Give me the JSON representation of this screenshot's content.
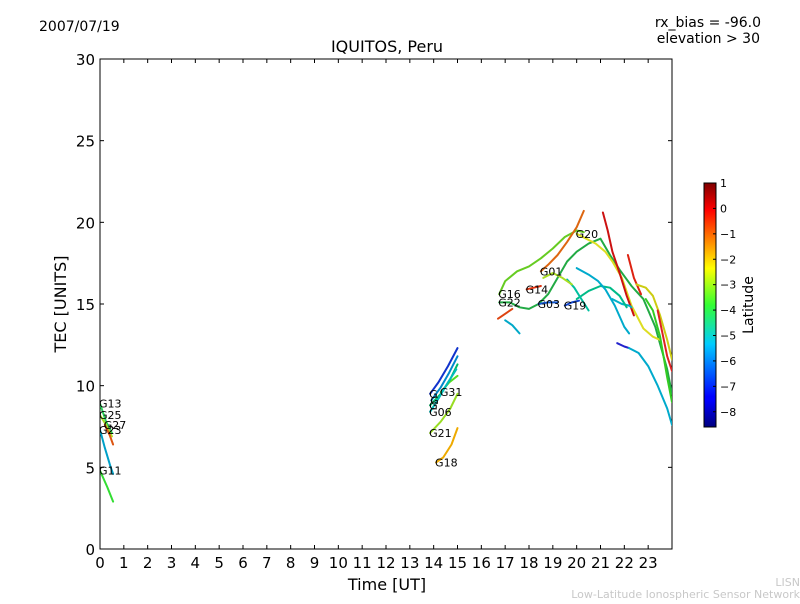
{
  "header": {
    "date": "2007/07/19",
    "rx_bias": "rx_bias = -96.0",
    "elevation": "elevation > 30"
  },
  "footer": {
    "org_short": "LISN",
    "org_full": "Low-Latitude Ionospheric Sensor Network"
  },
  "colorbar": {
    "label": "Latitude",
    "ticks": [
      1,
      0,
      -1,
      -2,
      -3,
      -4,
      -5,
      -6,
      -7,
      -8
    ],
    "range": [
      -8.6,
      1
    ],
    "colormap": "jet"
  },
  "chart_data": {
    "type": "line",
    "title": "IQUITOS, Peru",
    "xlabel": "Time [UT]",
    "ylabel": "TEC [UNITS]",
    "xlim": [
      0,
      24
    ],
    "ylim": [
      0,
      30
    ],
    "xticks": [
      "0",
      "1",
      "2",
      "3",
      "4",
      "5",
      "6",
      "7",
      "8",
      "9",
      "10",
      "11",
      "12",
      "13",
      "14",
      "15",
      "16",
      "17",
      "18",
      "19",
      "20",
      "21",
      "22",
      "23"
    ],
    "yticks": [
      0,
      5,
      10,
      15,
      20,
      25,
      30
    ],
    "grid": false,
    "color_by": "latitude",
    "series": [
      {
        "name": "G13",
        "color": "#2ad45a",
        "points": [
          [
            0,
            8.9
          ],
          [
            0.25,
            7.8
          ],
          [
            0.5,
            7.1
          ]
        ]
      },
      {
        "name": "G25",
        "color": "#aadd22",
        "points": [
          [
            0,
            8.2
          ],
          [
            0.25,
            7.6
          ],
          [
            0.5,
            6.9
          ]
        ]
      },
      {
        "name": "G27",
        "color": "#dd5511",
        "points": [
          [
            0.2,
            7.6
          ],
          [
            0.4,
            7.0
          ],
          [
            0.55,
            6.4
          ]
        ]
      },
      {
        "name": "G23",
        "color": "#00a0c8",
        "points": [
          [
            0,
            7.3
          ],
          [
            0.2,
            6.2
          ],
          [
            0.45,
            5.0
          ],
          [
            0.55,
            4.6
          ]
        ]
      },
      {
        "name": "G11",
        "color": "#33dd33",
        "points": [
          [
            0,
            4.8
          ],
          [
            0.3,
            3.8
          ],
          [
            0.55,
            2.9
          ]
        ]
      },
      {
        "name": "G31",
        "color": "#55dd22",
        "points": [
          [
            14.3,
            9.6
          ],
          [
            14.65,
            10.2
          ],
          [
            15.0,
            10.6
          ]
        ]
      },
      {
        "name": "G",
        "color": "#1133cc",
        "points": [
          [
            13.85,
            9.5
          ],
          [
            14.2,
            10.2
          ],
          [
            14.6,
            11.2
          ],
          [
            15.0,
            12.3
          ]
        ]
      },
      {
        "name": "G",
        "color": "#0088cc",
        "points": [
          [
            13.9,
            9.1
          ],
          [
            14.3,
            9.9
          ],
          [
            14.65,
            10.8
          ],
          [
            15.0,
            11.8
          ]
        ]
      },
      {
        "name": "G",
        "color": "#00bb66",
        "points": [
          [
            13.85,
            8.8
          ],
          [
            14.3,
            9.5
          ],
          [
            14.7,
            10.4
          ],
          [
            15.0,
            11.3
          ]
        ]
      },
      {
        "name": "G06",
        "color": "#00bbbb",
        "points": [
          [
            13.85,
            8.4
          ],
          [
            14.2,
            9.2
          ],
          [
            14.6,
            10.2
          ],
          [
            14.95,
            11.0
          ]
        ]
      },
      {
        "name": "G21",
        "color": "#99dd22",
        "points": [
          [
            13.85,
            7.1
          ],
          [
            14.3,
            7.8
          ],
          [
            14.7,
            8.6
          ],
          [
            15.0,
            9.5
          ]
        ]
      },
      {
        "name": "G18",
        "color": "#eeaa00",
        "points": [
          [
            14.1,
            5.3
          ],
          [
            14.4,
            5.6
          ],
          [
            14.75,
            6.4
          ],
          [
            15.0,
            7.4
          ]
        ]
      },
      {
        "name": "G16",
        "color": "#66cc22",
        "points": [
          [
            16.75,
            15.6
          ],
          [
            17.0,
            16.4
          ],
          [
            17.5,
            17.0
          ],
          [
            18.0,
            17.3
          ],
          [
            18.5,
            17.8
          ],
          [
            19.0,
            18.4
          ],
          [
            19.5,
            19.1
          ],
          [
            20.0,
            19.5
          ],
          [
            20.3,
            19.4
          ]
        ]
      },
      {
        "name": "G22",
        "color": "#22aa44",
        "points": [
          [
            16.75,
            15.1
          ],
          [
            17.2,
            15.1
          ],
          [
            17.6,
            14.8
          ],
          [
            18.0,
            14.7
          ],
          [
            18.4,
            15.0
          ],
          [
            18.8,
            15.6
          ],
          [
            19.2,
            16.6
          ],
          [
            19.6,
            17.6
          ],
          [
            20.0,
            18.2
          ],
          [
            20.5,
            18.7
          ],
          [
            21.0,
            19.0
          ],
          [
            21.4,
            18.0
          ],
          [
            21.8,
            17.1
          ],
          [
            22.3,
            16.1
          ],
          [
            22.8,
            15.3
          ],
          [
            23.3,
            13.6
          ],
          [
            23.8,
            11.0
          ],
          [
            24.0,
            9.5
          ]
        ]
      },
      {
        "name": "G14",
        "color": "#dd3311",
        "points": [
          [
            17.9,
            15.9
          ],
          [
            18.2,
            16.0
          ],
          [
            18.5,
            16.1
          ]
        ]
      },
      {
        "name": "G01",
        "color": "#dd6611",
        "points": [
          [
            18.5,
            17.0
          ],
          [
            18.8,
            17.4
          ],
          [
            19.2,
            18.0
          ],
          [
            19.6,
            18.8
          ],
          [
            20.0,
            19.7
          ],
          [
            20.3,
            20.7
          ]
        ]
      },
      {
        "name": "G03",
        "color": "#1155cc",
        "points": [
          [
            18.4,
            15.0
          ],
          [
            18.8,
            15.1
          ],
          [
            19.2,
            15.1
          ]
        ]
      },
      {
        "name": "G19",
        "color": "#1144cc",
        "points": [
          [
            19.5,
            14.9
          ],
          [
            19.8,
            15.1
          ],
          [
            20.1,
            15.2
          ]
        ]
      },
      {
        "name": "G20",
        "color": "#dddd22",
        "points": [
          [
            20.0,
            19.3
          ],
          [
            20.4,
            19.0
          ],
          [
            20.8,
            18.7
          ],
          [
            21.2,
            18.2
          ],
          [
            21.5,
            17.6
          ],
          [
            21.9,
            16.6
          ],
          [
            22.3,
            14.9
          ],
          [
            22.8,
            13.5
          ],
          [
            23.2,
            13.0
          ],
          [
            23.5,
            12.8
          ]
        ]
      },
      {
        "name": "",
        "color": "#cc1111",
        "points": [
          [
            21.1,
            20.6
          ],
          [
            21.3,
            19.5
          ],
          [
            21.5,
            18.2
          ],
          [
            21.8,
            16.9
          ],
          [
            22.1,
            15.5
          ],
          [
            22.4,
            14.3
          ]
        ]
      },
      {
        "name": "",
        "color": "#dd2211",
        "points": [
          [
            22.15,
            18.0
          ],
          [
            22.4,
            16.6
          ],
          [
            22.7,
            15.6
          ]
        ]
      },
      {
        "name": "",
        "color": "#cccc11",
        "points": [
          [
            22.5,
            16.2
          ],
          [
            22.9,
            16.0
          ],
          [
            23.2,
            15.5
          ],
          [
            23.5,
            14.3
          ],
          [
            23.8,
            12.8
          ],
          [
            24.0,
            11.6
          ]
        ]
      },
      {
        "name": "",
        "color": "#00b0c8",
        "points": [
          [
            21.5,
            15.3
          ],
          [
            21.9,
            15.0
          ],
          [
            22.2,
            14.9
          ],
          [
            22.3,
            14.8
          ]
        ]
      },
      {
        "name": "",
        "color": "#2222cc",
        "points": [
          [
            21.7,
            12.6
          ],
          [
            22.0,
            12.4
          ],
          [
            22.2,
            12.3
          ]
        ]
      },
      {
        "name": "",
        "color": "#00aacc",
        "points": [
          [
            22.2,
            12.3
          ],
          [
            22.6,
            12.0
          ],
          [
            23.0,
            11.2
          ],
          [
            23.4,
            10.0
          ],
          [
            23.8,
            8.6
          ],
          [
            24.0,
            7.6
          ]
        ]
      },
      {
        "name": "",
        "color": "#00bb88",
        "points": [
          [
            20.0,
            15.3
          ],
          [
            20.5,
            15.8
          ],
          [
            21.0,
            16.1
          ],
          [
            21.4,
            16.0
          ],
          [
            21.8,
            15.5
          ],
          [
            22.1,
            14.8
          ]
        ]
      },
      {
        "name": "",
        "color": "#33cc22",
        "points": [
          [
            22.9,
            15.3
          ],
          [
            23.2,
            14.6
          ],
          [
            23.5,
            13.0
          ],
          [
            23.8,
            10.5
          ],
          [
            24.0,
            9.0
          ]
        ]
      },
      {
        "name": "",
        "color": "#00a8c8",
        "points": [
          [
            17.0,
            14.0
          ],
          [
            17.3,
            13.7
          ],
          [
            17.6,
            13.2
          ]
        ]
      },
      {
        "name": "",
        "color": "#dd4411",
        "points": [
          [
            16.7,
            14.1
          ],
          [
            16.9,
            14.3
          ],
          [
            17.3,
            14.7
          ]
        ]
      },
      {
        "name": "",
        "color": "#00c0a0",
        "points": [
          [
            19.6,
            16.5
          ],
          [
            19.9,
            16.0
          ],
          [
            20.2,
            15.3
          ],
          [
            20.5,
            14.6
          ]
        ]
      },
      {
        "name": "",
        "color": "#00aacc",
        "points": [
          [
            20.0,
            17.2
          ],
          [
            20.5,
            16.8
          ],
          [
            20.9,
            16.4
          ],
          [
            21.2,
            15.9
          ],
          [
            21.6,
            14.9
          ],
          [
            22.0,
            13.6
          ],
          [
            22.2,
            13.2
          ]
        ]
      },
      {
        "name": "",
        "color": "#dd2222",
        "points": [
          [
            23.4,
            14.6
          ],
          [
            23.6,
            13.2
          ],
          [
            23.8,
            11.8
          ],
          [
            24.0,
            10.9
          ]
        ]
      },
      {
        "name": "",
        "color": "#aadd22",
        "points": [
          [
            18.6,
            16.6
          ],
          [
            19.0,
            16.9
          ],
          [
            19.4,
            16.6
          ],
          [
            19.8,
            16.2
          ]
        ]
      }
    ]
  }
}
